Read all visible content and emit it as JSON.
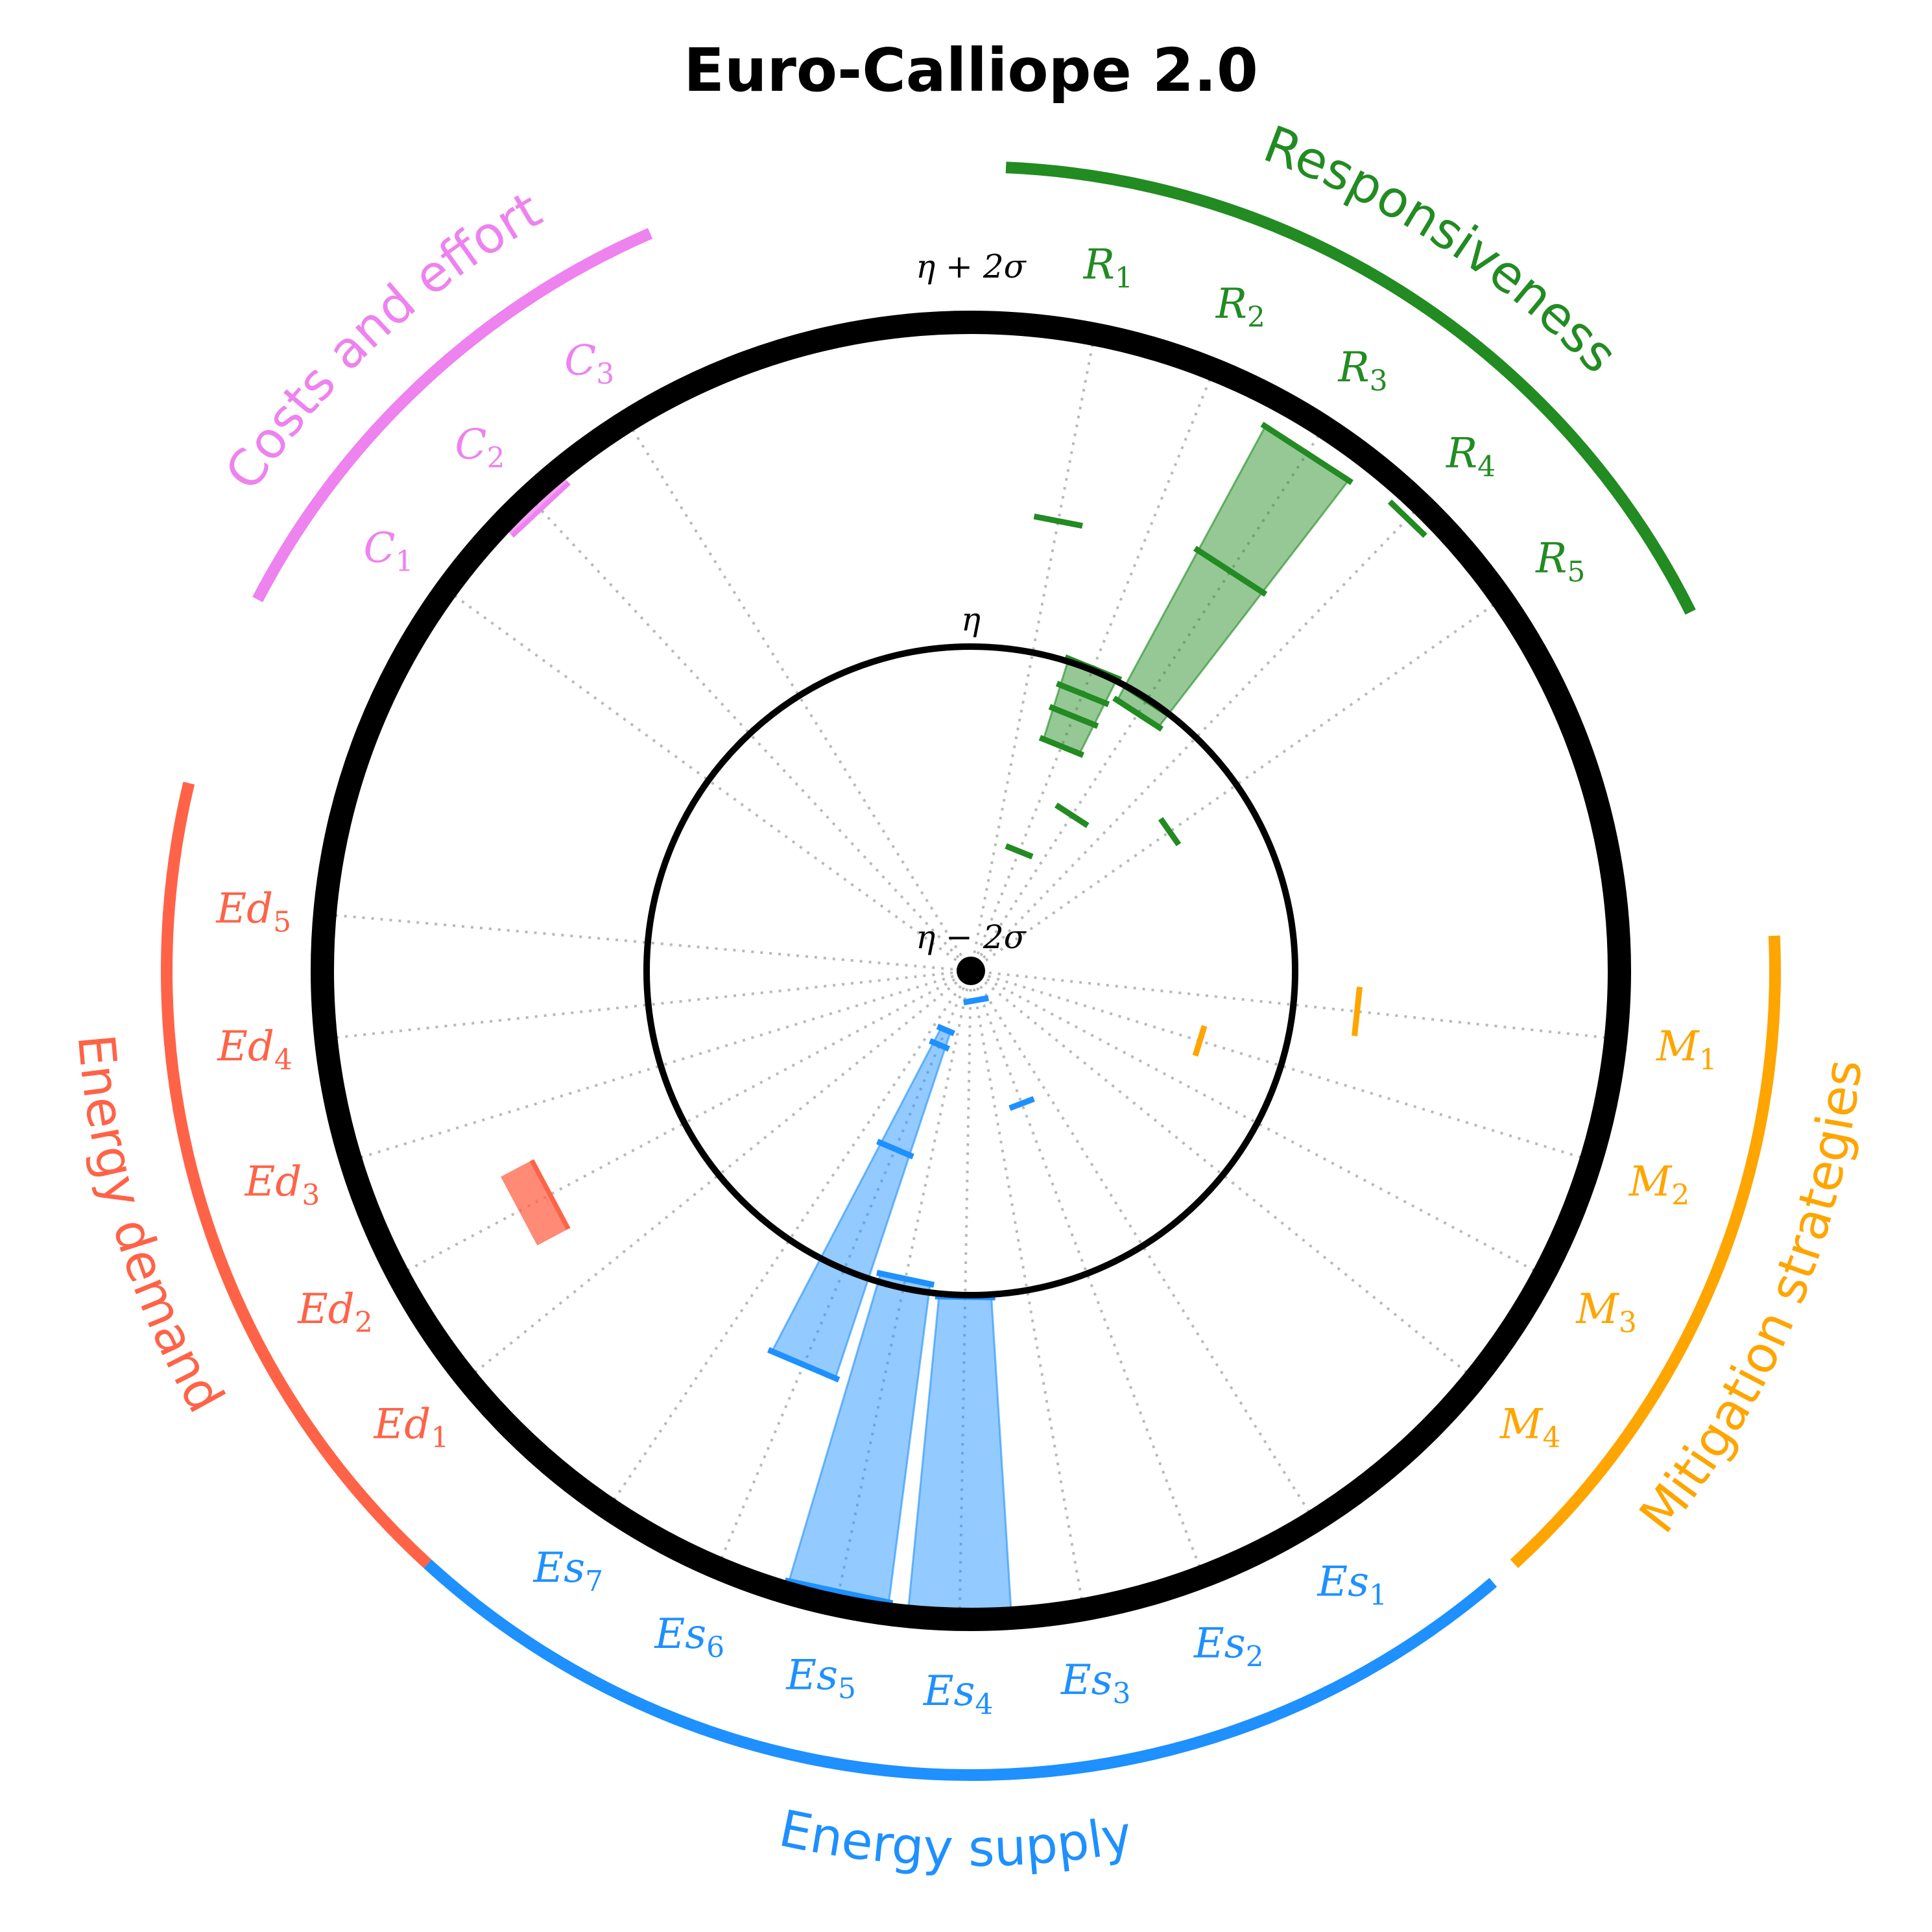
{
  "chart_data": {
    "type": "radial",
    "title": "Euro-Calliope 2.0",
    "scale_labels": {
      "outer": "η + 2σ",
      "middle": "η",
      "center": "η − 2σ"
    },
    "scale_values": {
      "center": -2,
      "middle": 0,
      "outer": 2
    },
    "categories": [
      {
        "name": "Responsiveness",
        "color": "#228B22",
        "indicators": [
          {
            "key": "R1",
            "base": "R",
            "sub": "1",
            "kind": "marker",
            "value": 0.83
          },
          {
            "key": "R2",
            "base": "R",
            "sub": "2",
            "kind": "wedge",
            "min": -0.5,
            "max": 0.02,
            "quartiles": [
              -1.2,
              -0.3,
              -0.15
            ]
          },
          {
            "key": "R3",
            "base": "R",
            "sub": "3",
            "kind": "wedge",
            "min": -0.1,
            "max": 1.82,
            "quartiles": [
              -0.85,
              0.0,
              0.95
            ]
          },
          {
            "key": "R4",
            "base": "R",
            "sub": "4",
            "kind": "marker",
            "value": 1.88
          },
          {
            "key": "R5",
            "base": "R",
            "sub": "5",
            "kind": "marker",
            "value": -0.5
          }
        ]
      },
      {
        "name": "Mitigation strategies",
        "color": "#FFA500",
        "indicators": [
          {
            "key": "M1",
            "base": "M",
            "sub": "1",
            "kind": "marker",
            "value": 0.4
          },
          {
            "key": "M2",
            "base": "M",
            "sub": "2",
            "kind": "marker",
            "value": -0.52
          },
          {
            "key": "M3",
            "base": "M",
            "sub": "3",
            "kind": "none"
          },
          {
            "key": "M4",
            "base": "M",
            "sub": "4",
            "kind": "none"
          }
        ]
      },
      {
        "name": "Energy supply",
        "color": "#1E90FF",
        "indicators": [
          {
            "key": "Es1",
            "base": "Es",
            "sub": "1",
            "kind": "none"
          },
          {
            "key": "Es2",
            "base": "Es",
            "sub": "2",
            "kind": "marker",
            "value": -1.12
          },
          {
            "key": "Es3",
            "base": "Es",
            "sub": "3",
            "kind": "marker",
            "value": -1.8
          },
          {
            "key": "Es4",
            "base": "Es",
            "sub": "4",
            "kind": "wedge",
            "min": 0.02,
            "max": 1.98,
            "quartiles": []
          },
          {
            "key": "Es5",
            "base": "Es",
            "sub": "5",
            "kind": "wedge",
            "min": -0.05,
            "max": 1.93,
            "quartiles": []
          },
          {
            "key": "Es6",
            "base": "Es",
            "sub": "6",
            "kind": "wedge",
            "min": -1.6,
            "max": 0.65,
            "quartiles": [
              -1.5,
              -0.8
            ]
          },
          {
            "key": "Es7",
            "base": "Es",
            "sub": "7",
            "kind": "none"
          }
        ]
      },
      {
        "name": "Energy demand",
        "color": "#FF6347",
        "indicators": [
          {
            "key": "Ed1",
            "base": "Ed",
            "sub": "1",
            "kind": "none"
          },
          {
            "key": "Ed2",
            "base": "Ed",
            "sub": "2",
            "kind": "band",
            "min": 0.95,
            "max": 1.15
          },
          {
            "key": "Ed3",
            "base": "Ed",
            "sub": "3",
            "kind": "none"
          },
          {
            "key": "Ed4",
            "base": "Ed",
            "sub": "4",
            "kind": "none"
          },
          {
            "key": "Ed5",
            "base": "Ed",
            "sub": "5",
            "kind": "none"
          }
        ]
      },
      {
        "name": "Costs and effort",
        "color": "#EE82EE",
        "indicators": [
          {
            "key": "C1",
            "base": "C",
            "sub": "1",
            "kind": "none"
          },
          {
            "key": "C2",
            "base": "C",
            "sub": "2",
            "kind": "band",
            "min": 1.9,
            "max": 2.0
          },
          {
            "key": "C3",
            "base": "C",
            "sub": "3",
            "kind": "none"
          }
        ]
      }
    ]
  }
}
